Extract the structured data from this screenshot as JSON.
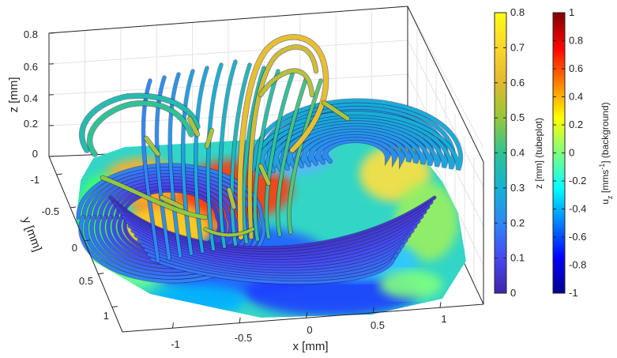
{
  "chart_data": {
    "type": "3d-streamtube",
    "xlabel": "x [mm]",
    "ylabel": "y [mm]",
    "zlabel": "z [mm]",
    "x_ticks": [
      "-1",
      "-0.5",
      "0",
      "0.5",
      "1"
    ],
    "y_ticks": [
      "-1",
      "-0.5",
      "0",
      "0.5",
      "1"
    ],
    "z_ticks": [
      "0",
      "0.2",
      "0.4",
      "0.6",
      "0.8"
    ],
    "xlim": [
      -1.3,
      1.3
    ],
    "ylim": [
      -1.3,
      1.3
    ],
    "zlim": [
      0,
      0.8
    ],
    "grid": true,
    "colorbars": [
      {
        "label": "z [mm] (tubeplot)",
        "range": [
          0,
          0.8
        ],
        "ticks": [
          "0",
          "0.1",
          "0.2",
          "0.3",
          "0.4",
          "0.5",
          "0.6",
          "0.7",
          "0.8"
        ],
        "colormap": "parula",
        "colors": [
          "#3e26a8",
          "#4748f1",
          "#2e87f7",
          "#14b2d2",
          "#2fc393",
          "#95c83a",
          "#e0b92e",
          "#fdd52d",
          "#f9fb15"
        ]
      },
      {
        "label": "u_z [mms^-1] (background)",
        "range": [
          -1,
          1
        ],
        "ticks": [
          "-1",
          "-0.8",
          "-0.6",
          "-0.4",
          "-0.2",
          "0",
          "0.2",
          "0.4",
          "0.6",
          "0.8",
          "1"
        ],
        "colormap": "jet",
        "colors": [
          "#00008f",
          "#0000ff",
          "#0080ff",
          "#00ffff",
          "#80ff80",
          "#ffff00",
          "#ff8000",
          "#ff0000",
          "#800000"
        ]
      }
    ],
    "vortices": [
      {
        "center_x": -0.45,
        "center_y": -0.1,
        "description": "left vortex"
      },
      {
        "center_x": 0.45,
        "center_y": -0.55,
        "description": "right vortex"
      }
    ]
  }
}
